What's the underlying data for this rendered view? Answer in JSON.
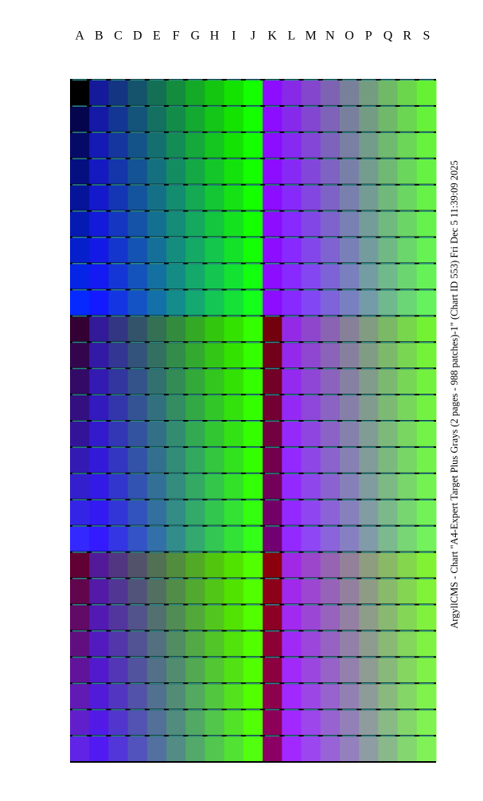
{
  "column_labels": [
    "A",
    "B",
    "C",
    "D",
    "E",
    "F",
    "G",
    "H",
    "I",
    "J",
    "K",
    "L",
    "M",
    "N",
    "O",
    "P",
    "Q",
    "R",
    "S"
  ],
  "side_text": "ArgyllCMS - Chart \"A4-Expert Target Plus Grays (2 pages - 988 patches)-1\" (Chart ID 553) Fri Dec  5 11:39:09 2025"
}
